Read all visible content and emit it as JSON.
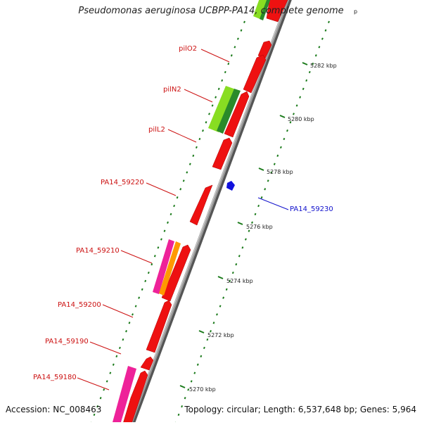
{
  "title": "Pseudomonas aeruginosa UCBPP-PA14, complete genome",
  "footer": {
    "accession": "Accession: NC_008463",
    "topology": "Topology: circular; Length: 6,537,648 bp; Genes: 5,964"
  },
  "colors": {
    "backbone": "#8a8a8a",
    "gene_red": "#ee1111",
    "gene_green": "#88dd22",
    "gene_dark_green": "#2a8a2a",
    "gene_pink": "#ee2299",
    "gene_orange": "#ff9900",
    "gene_blue": "#1111dd",
    "label_red": "#cc1111",
    "label_blue": "#1111cc",
    "tick_green": "#1a7a1a"
  },
  "scale_labels": [
    "5282 kbp",
    "5280 kbp",
    "5278 kbp",
    "5276 kbp",
    "5274 kbp",
    "5272 kbp",
    "5270 kbp"
  ],
  "gene_labels": [
    {
      "text": "pilO2",
      "color": "red"
    },
    {
      "text": "pilN2",
      "color": "red"
    },
    {
      "text": "pilL2",
      "color": "red"
    },
    {
      "text": "PA14_59220",
      "color": "red"
    },
    {
      "text": "PA14_59230",
      "color": "blue"
    },
    {
      "text": "PA14_59210",
      "color": "red"
    },
    {
      "text": "PA14_59200",
      "color": "red"
    },
    {
      "text": "PA14_59190",
      "color": "red"
    },
    {
      "text": "PA14_59180",
      "color": "red"
    }
  ]
}
